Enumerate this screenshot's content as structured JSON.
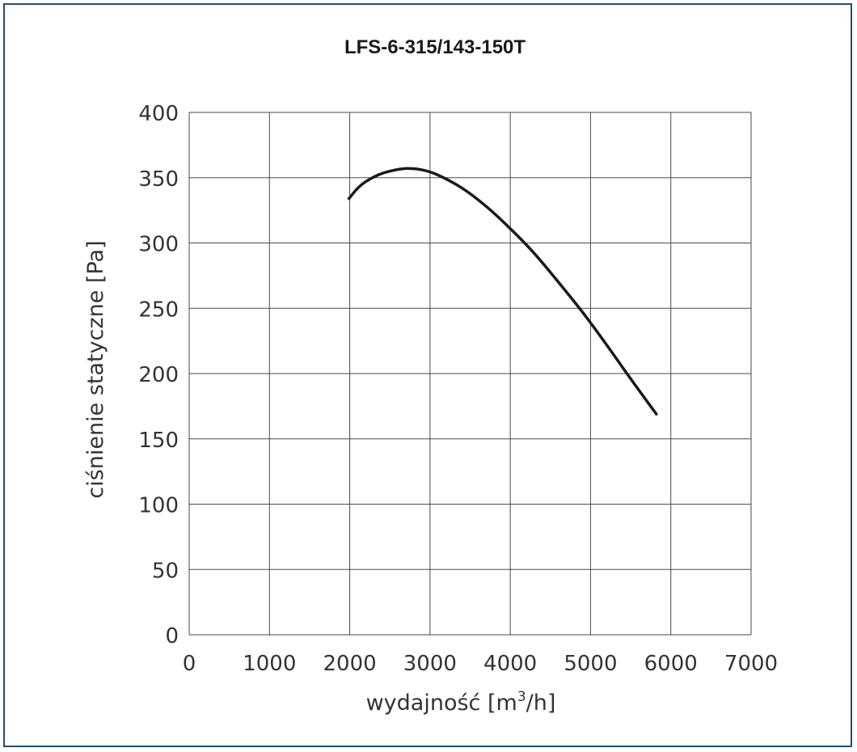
{
  "chart_data": {
    "type": "line",
    "title": "LFS-6-315/143-150T",
    "xlabel": "wydajność [m",
    "xlabel_sup": "3",
    "xlabel_suffix": "/h]",
    "ylabel": "ciśnienie statyczne [Pa]",
    "xlim": [
      0,
      7000
    ],
    "ylim": [
      0,
      400
    ],
    "x_ticks": [
      0,
      1000,
      2000,
      3000,
      4000,
      5000,
      6000,
      7000
    ],
    "y_ticks": [
      0,
      50,
      100,
      150,
      200,
      250,
      300,
      350,
      400
    ],
    "grid": true,
    "colors": {
      "line": "#1a1a1a",
      "grid": "#4a4a4a",
      "border": "#1f4e79"
    },
    "series": [
      {
        "x": [
          1990,
          2100,
          2200,
          2350,
          2500,
          2700,
          2900,
          3100,
          3400,
          3700,
          4000,
          4300,
          4600,
          4900,
          5200,
          5500,
          5820
        ],
        "y": [
          334,
          342,
          347,
          352,
          355,
          357,
          356,
          352,
          342,
          328,
          311,
          292,
          270,
          247,
          222,
          196,
          169
        ]
      }
    ]
  }
}
